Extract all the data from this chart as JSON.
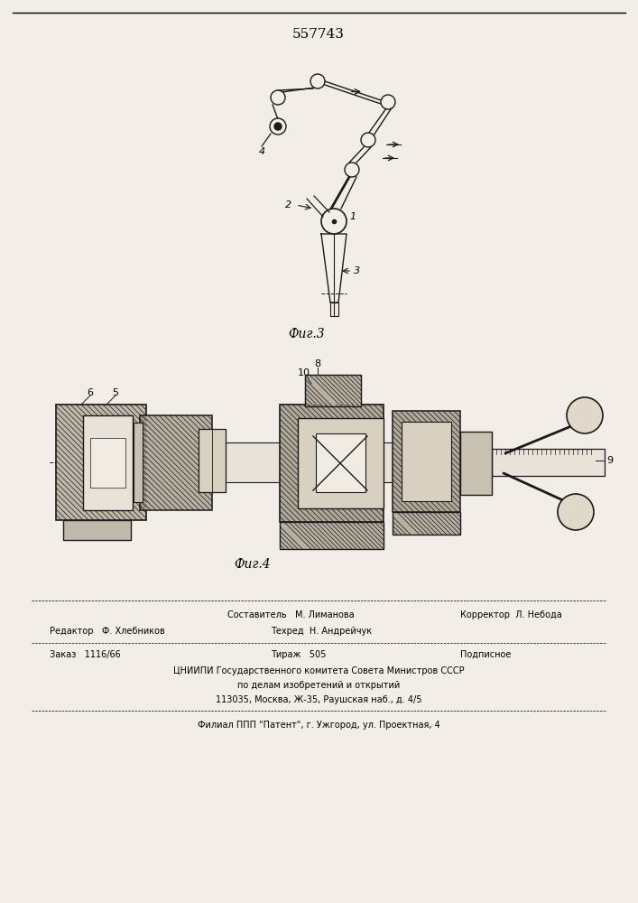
{
  "title": "557743",
  "fig3_label": "Фиг.3",
  "fig4_label": "Фиг.4",
  "bg_color": "#f2ede6",
  "line_color": "#1a1a1a",
  "hatch_fc": "#c8bfb0",
  "footer": {
    "row1_left": "Составитель   М. Лиманова",
    "row1_right": "Корректор  Л. Небода",
    "row2_left": "Редактор   Ф. Хлебников",
    "row2_mid": "Техред  Н. Андрейчук",
    "row3_left": "Заказ   1116/66",
    "row3_mid": "Тираж   505",
    "row3_right": "Подписное",
    "cnipi1": "ЦНИИПИ Государственного комитета Совета Министров СССР",
    "cnipi2": "по делам изобретений и открытий",
    "cnipi3": "113035, Москва, Ж-35, Раушская наб., д. 4/5",
    "filial": "Филиал ППП \"Патент\", г. Ужгород, ул. Проектная, 4"
  }
}
